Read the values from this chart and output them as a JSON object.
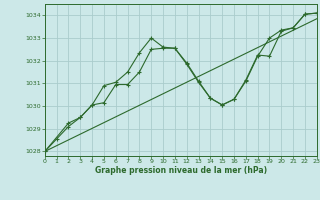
{
  "xlabel": "Graphe pression niveau de la mer (hPa)",
  "bg_color": "#cce8e8",
  "grid_color": "#aacccc",
  "line_color": "#2d6a2d",
  "xlim": [
    0,
    23
  ],
  "ylim": [
    1027.8,
    1034.5
  ],
  "yticks": [
    1028,
    1029,
    1030,
    1031,
    1032,
    1033,
    1034
  ],
  "xticks": [
    0,
    1,
    2,
    3,
    4,
    5,
    6,
    7,
    8,
    9,
    10,
    11,
    12,
    13,
    14,
    15,
    16,
    17,
    18,
    19,
    20,
    21,
    22,
    23
  ],
  "line1_x": [
    0,
    1,
    2,
    3,
    4,
    5,
    6,
    7,
    8,
    9,
    10,
    11,
    12,
    13,
    14,
    15,
    16,
    17,
    18,
    19,
    20,
    21,
    22,
    23
  ],
  "line1_y": [
    1028.0,
    1028.55,
    1029.1,
    1029.5,
    1030.05,
    1030.9,
    1031.05,
    1031.5,
    1032.35,
    1033.0,
    1032.6,
    1032.55,
    1031.9,
    1031.1,
    1030.35,
    1030.05,
    1030.3,
    1031.1,
    1032.2,
    1033.0,
    1033.35,
    1033.45,
    1034.05,
    1034.1
  ],
  "line2_x": [
    0,
    23
  ],
  "line2_y": [
    1028.0,
    1033.85
  ],
  "line3_x": [
    0,
    2,
    3,
    4,
    5,
    6,
    7,
    8,
    9,
    10,
    11,
    12,
    13,
    14,
    15,
    16,
    17,
    18,
    19,
    20,
    21,
    22,
    23
  ],
  "line3_y": [
    1028.0,
    1029.25,
    1029.5,
    1030.05,
    1030.15,
    1030.95,
    1030.95,
    1031.5,
    1032.5,
    1032.55,
    1032.55,
    1031.85,
    1031.05,
    1030.35,
    1030.05,
    1030.3,
    1031.15,
    1032.25,
    1032.2,
    1033.3,
    1033.45,
    1034.05,
    1034.1
  ]
}
